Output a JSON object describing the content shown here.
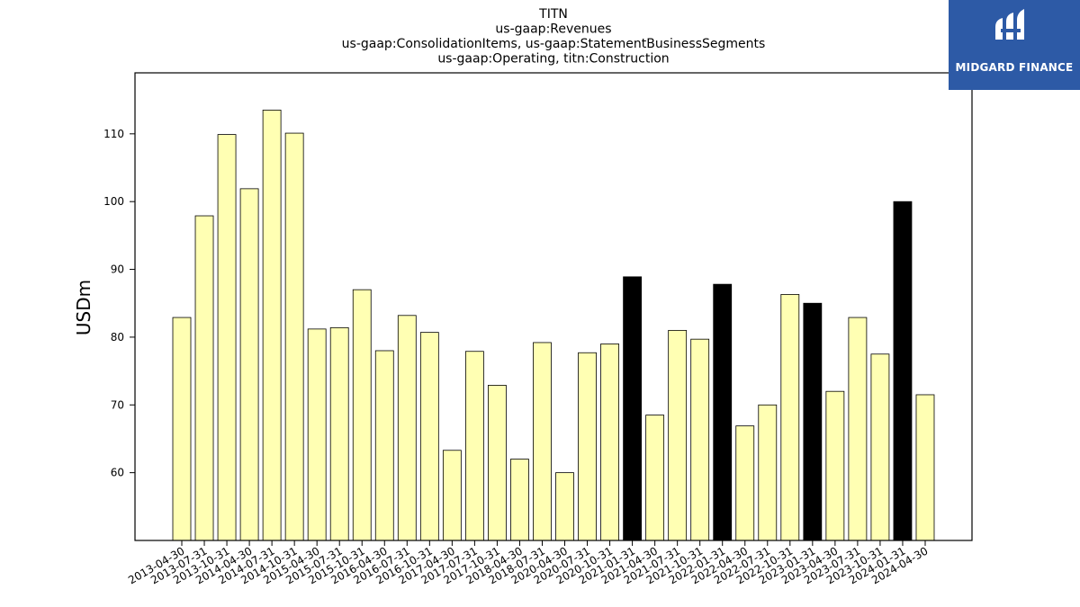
{
  "chart_data": {
    "type": "bar",
    "title_lines": [
      "TITN",
      "us-gaap:Revenues",
      "us-gaap:ConsolidationItems, us-gaap:StatementBusinessSegments",
      "us-gaap:Operating, titn:Construction"
    ],
    "xlabel": "",
    "ylabel": "USDm",
    "ylim": [
      50,
      119
    ],
    "yticks": [
      60,
      70,
      80,
      90,
      100,
      110
    ],
    "grid": false,
    "colors": {
      "normal": "#ffffb3",
      "highlight": "#000000",
      "edge": "#000000"
    },
    "categories": [
      "2013-04-30",
      "2013-07-31",
      "2013-10-31",
      "2014-04-30",
      "2014-07-31",
      "2014-10-31",
      "2015-04-30",
      "2015-07-31",
      "2015-10-31",
      "2016-04-30",
      "2016-07-31",
      "2016-10-31",
      "2017-04-30",
      "2017-07-31",
      "2017-10-31",
      "2018-04-30",
      "2018-07-31",
      "2020-04-30",
      "2020-07-31",
      "2020-10-31",
      "2021-01-31",
      "2021-04-30",
      "2021-07-31",
      "2021-10-31",
      "2022-01-31",
      "2022-04-30",
      "2022-07-31",
      "2022-10-31",
      "2023-01-31",
      "2023-04-30",
      "2023-07-31",
      "2023-10-31",
      "2024-01-31",
      "2024-04-30"
    ],
    "values": [
      82.9,
      97.9,
      109.9,
      101.9,
      113.5,
      110.1,
      81.2,
      81.4,
      87.0,
      78.0,
      83.2,
      80.7,
      63.3,
      77.9,
      72.9,
      62.0,
      79.2,
      60.0,
      77.7,
      79.0,
      88.9,
      68.5,
      81.0,
      79.7,
      87.8,
      66.9,
      70.0,
      86.3,
      85.0,
      72.0,
      82.9,
      77.5,
      100.0,
      71.5
    ],
    "highlight": [
      false,
      false,
      false,
      false,
      false,
      false,
      false,
      false,
      false,
      false,
      false,
      false,
      false,
      false,
      false,
      false,
      false,
      false,
      false,
      false,
      true,
      false,
      false,
      false,
      true,
      false,
      false,
      false,
      true,
      false,
      false,
      false,
      true,
      false
    ]
  },
  "logo": {
    "text": "MIDGARD FINANCE"
  }
}
